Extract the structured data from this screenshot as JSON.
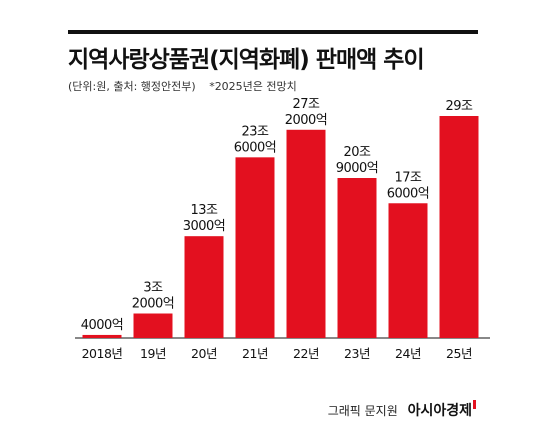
{
  "header": {
    "title": "지역사랑상품권(지역화폐) 판매액 추이",
    "unit_note": "(단위:원, 출처: 행정안전부)",
    "asterisk_note": "*2025년은 전망치"
  },
  "footer": {
    "credit": "그래픽 문지원",
    "brand": "아시아경제"
  },
  "colors": {
    "bar": "#e3101f",
    "baseline": "#111111",
    "text": "#111111"
  },
  "chart_data": {
    "type": "bar",
    "title": "지역사랑상품권(지역화폐) 판매액 추이",
    "xlabel": "",
    "ylabel": "",
    "unit": "원",
    "categories": [
      "2018년",
      "19년",
      "20년",
      "21년",
      "22년",
      "23년",
      "24년",
      "25년"
    ],
    "values_trillion_won": [
      0.4,
      3.2,
      13.3,
      23.6,
      27.2,
      20.9,
      17.6,
      29
    ],
    "data_labels": [
      [
        "4000억"
      ],
      [
        "3조",
        "2000억"
      ],
      [
        "13조",
        "3000억"
      ],
      [
        "23조",
        "6000억"
      ],
      [
        "27조",
        "2000억"
      ],
      [
        "20조",
        "9000억"
      ],
      [
        "17조",
        "6000억"
      ],
      [
        "29조"
      ]
    ],
    "ylim": [
      0,
      29
    ],
    "grid": false,
    "legend": "none"
  }
}
